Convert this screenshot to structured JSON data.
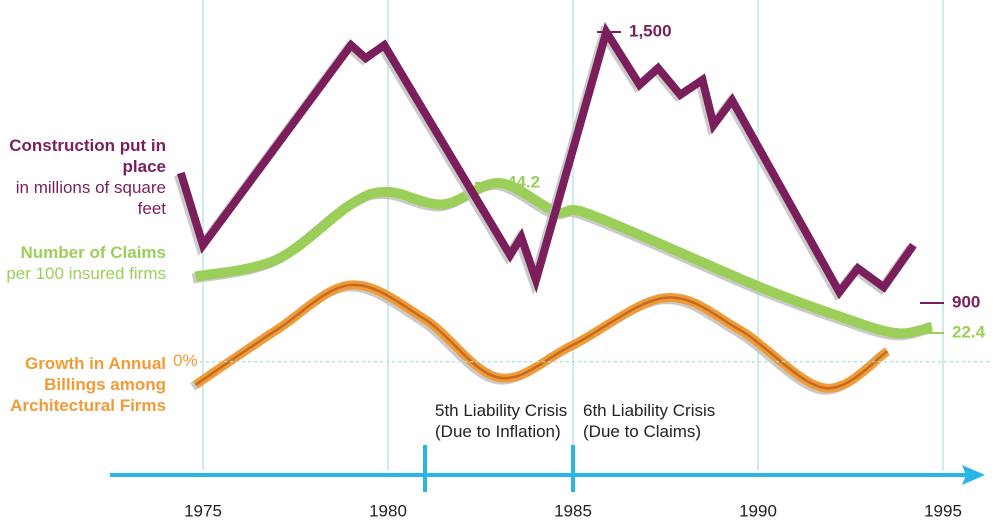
{
  "chart_data": {
    "type": "line",
    "xlim": [
      1975,
      1995
    ],
    "xticks": [
      1975,
      1980,
      1985,
      1990,
      1995
    ],
    "series": [
      {
        "name": "Construction put in place",
        "unit": "in millions of square feet",
        "color": "#7a1f5c",
        "x": [
          1974.4,
          1975.0,
          1979.0,
          1979.4,
          1979.9,
          1983.3,
          1983.6,
          1984.0,
          1985.9,
          1986.8,
          1987.3,
          1987.9,
          1988.5,
          1988.8,
          1989.3,
          1992.2,
          1992.7,
          1993.4,
          1994.2
        ],
        "values": [
          1188,
          1028,
          1471,
          1442,
          1471,
          1006,
          1046,
          951,
          1500,
          1383,
          1420,
          1361,
          1394,
          1294,
          1349,
          924,
          977,
          935,
          1028
        ],
        "ylim": [
          900,
          1500
        ],
        "yticks": [
          {
            "value": 1500,
            "label": "1,500"
          },
          900
        ]
      },
      {
        "name": "Number of Claims",
        "unit": "per 100 insured firms",
        "color": "#9bcf5a",
        "x": [
          1974.8,
          1977,
          1979,
          1980,
          1981.5,
          1983,
          1984.5,
          1985.2,
          1987,
          1990,
          1992,
          1993.7,
          1994.7
        ],
        "values": [
          30.6,
          33.1,
          41.1,
          42.9,
          41.1,
          44.2,
          40.1,
          40.1,
          36.2,
          29.2,
          25.2,
          22.4,
          23.3
        ],
        "ylim": [
          22.4,
          44.2
        ],
        "yticks": [
          44.2,
          22.4
        ]
      },
      {
        "name": "Growth in Annual Billings among Architectural Firms",
        "color": "#f29a36",
        "x": [
          1974.8,
          1977,
          1979,
          1981,
          1983,
          1985,
          1987.5,
          1989.5,
          1991.8,
          1993.5
        ],
        "values": [
          -2.9,
          4,
          9.6,
          5.3,
          -2,
          2.1,
          8,
          4,
          -3.3,
          1.3
        ],
        "ylim": [
          -3.3,
          9.6
        ],
        "yticks": [
          {
            "value": 0,
            "label": "0%"
          }
        ]
      }
    ],
    "annotations": [
      {
        "x": 1981,
        "text": "5th Liability Crisis (Due to Inflation)"
      },
      {
        "x": 1985,
        "text": "6th Liability Crisis (Due to Claims)"
      }
    ]
  }
}
